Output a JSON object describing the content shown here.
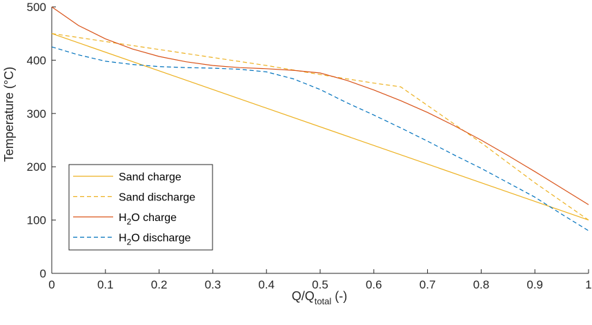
{
  "chart_data": {
    "type": "line",
    "title": "",
    "xlabel": "Q/Q",
    "xlabel_sub": "total",
    "xlabel_suffix": " (-)",
    "ylabel": "Temperature (°C)",
    "xlim": [
      0,
      1
    ],
    "ylim": [
      0,
      500
    ],
    "xticks": [
      0,
      0.1,
      0.2,
      0.3,
      0.4,
      0.5,
      0.6,
      0.7,
      0.8,
      0.9,
      1
    ],
    "xtick_labels": [
      "0",
      "0.1",
      "0.2",
      "0.3",
      "0.4",
      "0.5",
      "0.6",
      "0.7",
      "0.8",
      "0.9",
      "1"
    ],
    "yticks": [
      0,
      100,
      200,
      300,
      400,
      500
    ],
    "ytick_labels": [
      "0",
      "100",
      "200",
      "300",
      "400",
      "500"
    ],
    "grid": false,
    "legend_position": "lower-left",
    "series": [
      {
        "name": "Sand charge",
        "name_parts": [
          "Sand charge"
        ],
        "color": "#EDB120",
        "dash": "solid",
        "x": [
          0,
          1
        ],
        "y": [
          450,
          100
        ]
      },
      {
        "name": "Sand discharge",
        "name_parts": [
          "Sand discharge"
        ],
        "color": "#EDB120",
        "dash": "dashed",
        "x": [
          0,
          0.1,
          0.2,
          0.3,
          0.4,
          0.5,
          0.6,
          0.65,
          0.8,
          0.9,
          1
        ],
        "y": [
          450,
          435,
          420,
          405,
          390,
          373,
          357,
          350,
          245,
          170,
          100
        ]
      },
      {
        "name": "H2O charge",
        "name_parts": [
          "H",
          "2",
          "O charge"
        ],
        "color": "#D95319",
        "dash": "solid",
        "x": [
          0,
          0.05,
          0.1,
          0.15,
          0.2,
          0.25,
          0.3,
          0.35,
          0.4,
          0.45,
          0.5,
          0.55,
          0.6,
          0.65,
          0.7,
          0.75,
          0.8,
          0.85,
          0.9,
          0.95,
          1
        ],
        "y": [
          500,
          465,
          440,
          421,
          407,
          397,
          390,
          386,
          384,
          381,
          376,
          362,
          344,
          324,
          302,
          277,
          250,
          221,
          191,
          160,
          129
        ]
      },
      {
        "name": "H2O discharge",
        "name_parts": [
          "H",
          "2",
          "O discharge"
        ],
        "color": "#0072BD",
        "dash": "dashed",
        "x": [
          0,
          0.05,
          0.1,
          0.15,
          0.2,
          0.25,
          0.3,
          0.35,
          0.4,
          0.45,
          0.5,
          0.55,
          0.6,
          0.65,
          0.7,
          0.75,
          0.8,
          0.85,
          0.9,
          0.95,
          1
        ],
        "y": [
          425,
          410,
          398,
          392,
          388,
          386,
          385,
          383,
          378,
          365,
          345,
          320,
          297,
          273,
          248,
          222,
          197,
          170,
          143,
          111,
          80
        ]
      }
    ]
  }
}
